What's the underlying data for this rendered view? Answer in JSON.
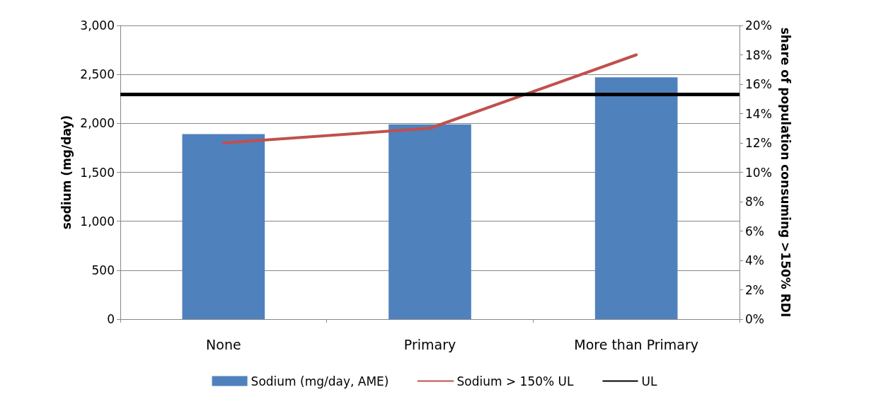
{
  "chart_data": {
    "type": "bar",
    "ylabel": "sodium (mg/day)",
    "y2label": "share of population consuming >150% RDI",
    "categories": [
      "None",
      "Primary",
      "More than Primary"
    ],
    "series": [
      {
        "name": "Sodium (mg/day, AME)",
        "color": "#4f81bd",
        "values": [
          1890,
          1990,
          2470
        ]
      },
      {
        "name": "Sodium > 150% UL",
        "type": "line",
        "axis": "y2",
        "color": "#c0504d",
        "values": [
          12,
          13,
          18
        ]
      }
    ],
    "ref_lines": [
      {
        "axis": "y",
        "value": 2300,
        "label": "UL",
        "color": "#000000"
      }
    ],
    "ylim": [
      0,
      3000
    ],
    "yticks": [
      {
        "value": 0,
        "label": "0"
      },
      {
        "value": 500,
        "label": "500"
      },
      {
        "value": 1000,
        "label": "1,000"
      },
      {
        "value": 1500,
        "label": "1,500"
      },
      {
        "value": 2000,
        "label": "2,000"
      },
      {
        "value": 2500,
        "label": "2,500"
      },
      {
        "value": 3000,
        "label": "3,000"
      }
    ],
    "y2lim": [
      0,
      20
    ],
    "y2ticks": [
      {
        "value": 0,
        "label": "0%"
      },
      {
        "value": 2,
        "label": "2%"
      },
      {
        "value": 4,
        "label": "4%"
      },
      {
        "value": 6,
        "label": "6%"
      },
      {
        "value": 8,
        "label": "8%"
      },
      {
        "value": 10,
        "label": "10%"
      },
      {
        "value": 12,
        "label": "12%"
      },
      {
        "value": 14,
        "label": "14%"
      },
      {
        "value": 16,
        "label": "16%"
      },
      {
        "value": 18,
        "label": "18%"
      },
      {
        "value": 20,
        "label": "20%"
      }
    ],
    "grid": "y",
    "legend": "bottom",
    "marker": "none"
  }
}
